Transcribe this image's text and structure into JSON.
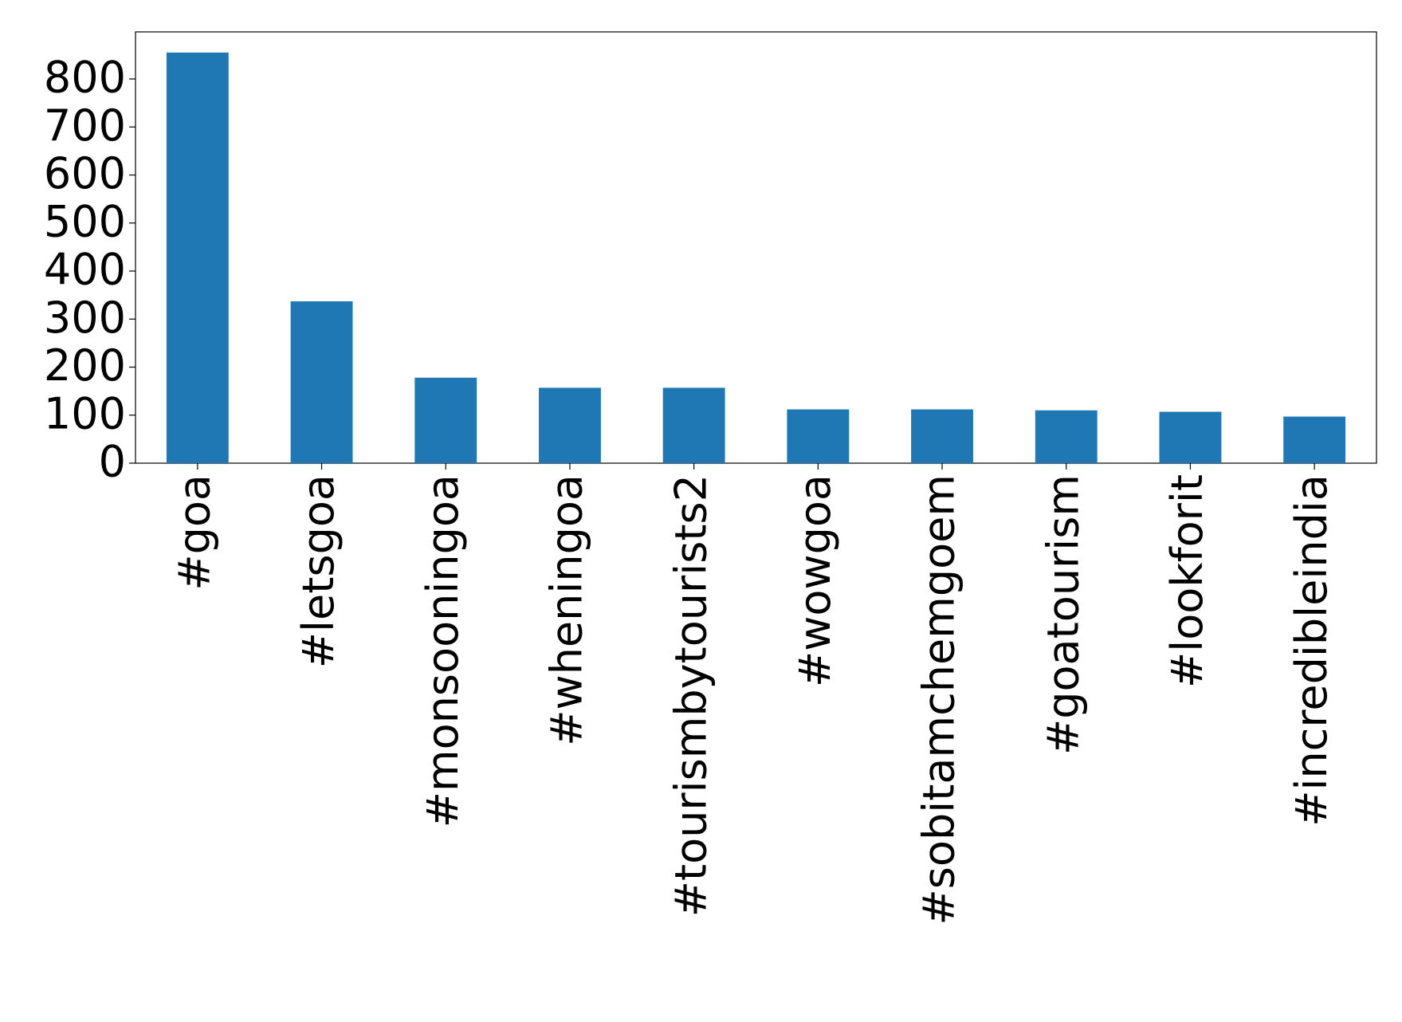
{
  "chart_data": {
    "type": "bar",
    "categories": [
      "#goa",
      "#letsgoa",
      "#monsooningoa",
      "#wheningoa",
      "#tourismbytourists2",
      "#wowgoa",
      "#sobitamchemgoem",
      "#goatourism",
      "#lookforit",
      "#incredibleindia"
    ],
    "values": [
      855,
      337,
      178,
      157,
      157,
      112,
      112,
      110,
      107,
      97
    ],
    "color": "#1f77b4",
    "ylim": [
      0,
      898
    ],
    "yticks": [
      0,
      100,
      200,
      300,
      400,
      500,
      600,
      700,
      800
    ],
    "grid": false
  }
}
